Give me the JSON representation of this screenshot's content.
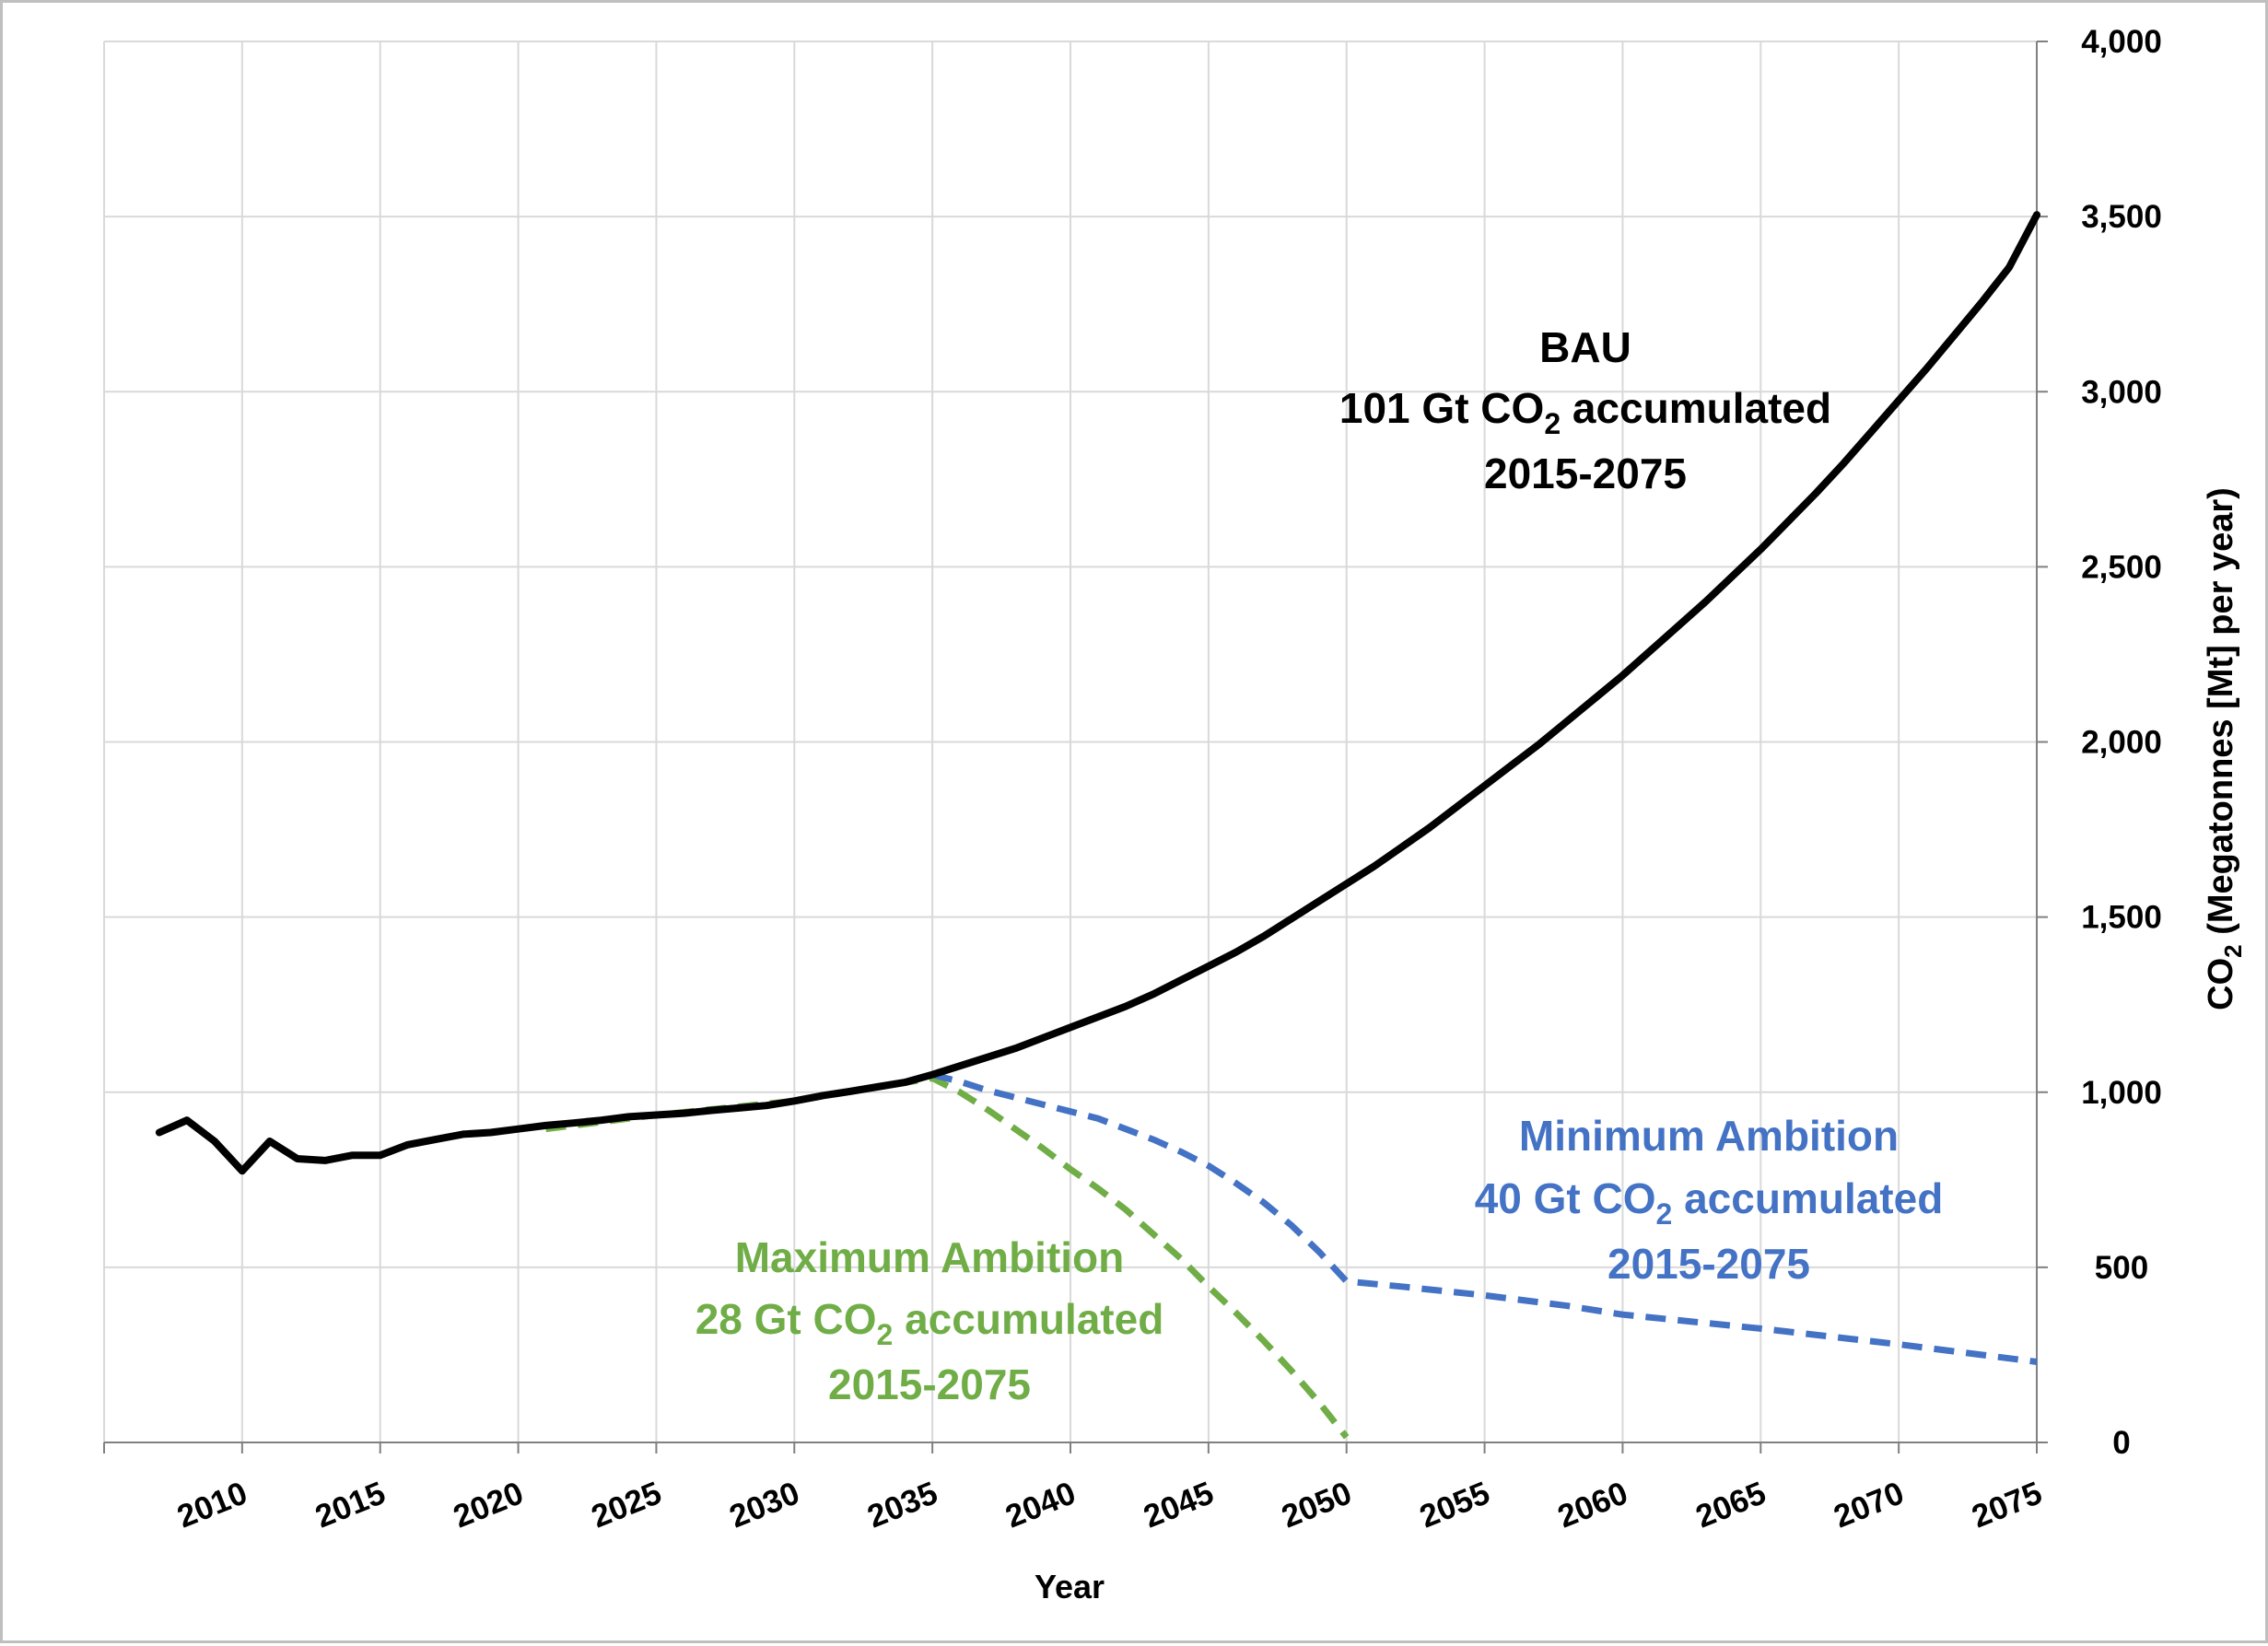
{
  "chart_data": {
    "type": "line",
    "title": "",
    "xlabel": "Year",
    "ylabel": "CO2 (Megatonnes [Mt] per year)",
    "ylabel_parts": {
      "pre": "CO",
      "sub": "2",
      "post": " (Megatonnes [Mt] per year)"
    },
    "xlim": [
      2005,
      2075
    ],
    "ylim": [
      0,
      4000
    ],
    "y_axis_side": "right",
    "grid": true,
    "legend": "none",
    "x_ticks": [
      2010,
      2015,
      2020,
      2025,
      2030,
      2035,
      2040,
      2045,
      2050,
      2055,
      2060,
      2065,
      2070,
      2075
    ],
    "x_tick_labels": [
      "2010",
      "2015",
      "2020",
      "2025",
      "2030",
      "2035",
      "2040",
      "2045",
      "2050",
      "2055",
      "2060",
      "2065",
      "2070",
      "2075"
    ],
    "y_ticks": [
      0,
      500,
      1000,
      1500,
      2000,
      2500,
      3000,
      3500,
      4000
    ],
    "y_tick_labels": [
      "0",
      "500",
      "1,000",
      "1,500",
      "2,000",
      "2,500",
      "3,000",
      "3,500",
      "4,000"
    ],
    "series": [
      {
        "key": "bau",
        "color": "#000000",
        "style": "solid",
        "points": [
          [
            2007,
            885
          ],
          [
            2008,
            920
          ],
          [
            2009,
            860
          ],
          [
            2010,
            775
          ],
          [
            2011,
            860
          ],
          [
            2012,
            810
          ],
          [
            2013,
            805
          ],
          [
            2014,
            820
          ],
          [
            2015,
            820
          ],
          [
            2016,
            850
          ],
          [
            2017,
            865
          ],
          [
            2018,
            880
          ],
          [
            2019,
            885
          ],
          [
            2020,
            895
          ],
          [
            2021,
            905
          ],
          [
            2022,
            912
          ],
          [
            2023,
            920
          ],
          [
            2024,
            930
          ],
          [
            2025,
            935
          ],
          [
            2026,
            940
          ],
          [
            2027,
            948
          ],
          [
            2028,
            955
          ],
          [
            2029,
            962
          ],
          [
            2030,
            975
          ],
          [
            2031,
            990
          ],
          [
            2032,
            1002
          ],
          [
            2033,
            1015
          ],
          [
            2034,
            1028
          ],
          [
            2035,
            1050
          ],
          [
            2036,
            1075
          ],
          [
            2037,
            1100
          ],
          [
            2038,
            1125
          ],
          [
            2039,
            1155
          ],
          [
            2040,
            1185
          ],
          [
            2041,
            1215
          ],
          [
            2042,
            1245
          ],
          [
            2043,
            1280
          ],
          [
            2044,
            1320
          ],
          [
            2045,
            1360
          ],
          [
            2046,
            1400
          ],
          [
            2047,
            1445
          ],
          [
            2048,
            1495
          ],
          [
            2049,
            1545
          ],
          [
            2050,
            1595
          ],
          [
            2051,
            1645
          ],
          [
            2052,
            1700
          ],
          [
            2053,
            1755
          ],
          [
            2054,
            1815
          ],
          [
            2055,
            1875
          ],
          [
            2056,
            1935
          ],
          [
            2057,
            1995
          ],
          [
            2058,
            2060
          ],
          [
            2059,
            2125
          ],
          [
            2060,
            2190
          ],
          [
            2061,
            2260
          ],
          [
            2062,
            2330
          ],
          [
            2063,
            2400
          ],
          [
            2064,
            2475
          ],
          [
            2065,
            2550
          ],
          [
            2066,
            2630
          ],
          [
            2067,
            2710
          ],
          [
            2068,
            2795
          ],
          [
            2069,
            2885
          ],
          [
            2070,
            2975
          ],
          [
            2071,
            3065
          ],
          [
            2072,
            3160
          ],
          [
            2073,
            3255
          ],
          [
            2074,
            3355
          ],
          [
            2075,
            3505
          ]
        ]
      },
      {
        "key": "min",
        "color": "#4472c4",
        "style": "dashed",
        "points": [
          [
            2035,
            1050
          ],
          [
            2036,
            1030
          ],
          [
            2037,
            1005
          ],
          [
            2038,
            985
          ],
          [
            2039,
            965
          ],
          [
            2040,
            945
          ],
          [
            2041,
            925
          ],
          [
            2042,
            895
          ],
          [
            2043,
            865
          ],
          [
            2044,
            830
          ],
          [
            2045,
            790
          ],
          [
            2046,
            740
          ],
          [
            2047,
            685
          ],
          [
            2048,
            620
          ],
          [
            2049,
            545
          ],
          [
            2050,
            460
          ],
          [
            2052,
            445
          ],
          [
            2055,
            420
          ],
          [
            2058,
            390
          ],
          [
            2060,
            365
          ],
          [
            2065,
            325
          ],
          [
            2070,
            280
          ],
          [
            2075,
            230
          ]
        ]
      },
      {
        "key": "max",
        "color": "#70ad47",
        "style": "dashed",
        "points": [
          [
            2021,
            895
          ],
          [
            2022,
            905
          ],
          [
            2023,
            915
          ],
          [
            2024,
            925
          ],
          [
            2025,
            935
          ],
          [
            2030,
            975
          ],
          [
            2035,
            1040
          ],
          [
            2036,
            1000
          ],
          [
            2037,
            950
          ],
          [
            2038,
            895
          ],
          [
            2039,
            840
          ],
          [
            2040,
            780
          ],
          [
            2041,
            725
          ],
          [
            2042,
            665
          ],
          [
            2043,
            595
          ],
          [
            2044,
            525
          ],
          [
            2045,
            445
          ],
          [
            2046,
            370
          ],
          [
            2047,
            290
          ],
          [
            2048,
            205
          ],
          [
            2049,
            115
          ],
          [
            2050,
            15
          ]
        ]
      }
    ],
    "annotations": [
      {
        "key": "bau",
        "color": "#000000",
        "line1": "BAU",
        "line2_pre": "101 Gt CO",
        "line2_sub": "2",
        "line2_post": " accumulated",
        "line3": "2015-2075"
      },
      {
        "key": "min",
        "color": "#4472c4",
        "line1": "Minimum Ambition",
        "line2_pre": "40 Gt CO",
        "line2_sub": "2",
        "line2_post": " accumulated",
        "line3": "2015-2075"
      },
      {
        "key": "max",
        "color": "#70ad47",
        "line1": "Maximum Ambition",
        "line2_pre": "28 Gt CO",
        "line2_sub": "2",
        "line2_post": " accumulated",
        "line3": "2015-2075"
      }
    ]
  }
}
